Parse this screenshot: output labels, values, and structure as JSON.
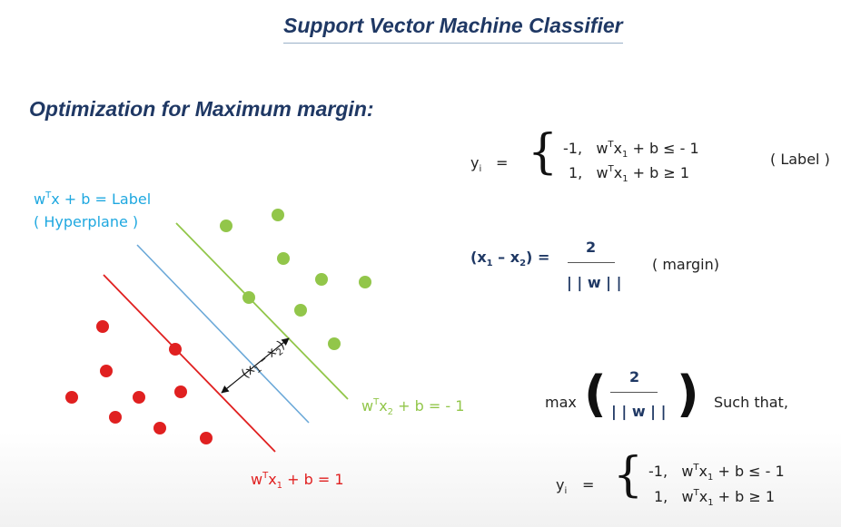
{
  "title": "Support Vector Machine Classifier",
  "subtitle": "Optimization for Maximum margin:",
  "hyperplane": {
    "eq_pre": "w",
    "eq_sup": "T",
    "eq_post": "x  +  b  =  Label",
    "note": "( Hyperplane )"
  },
  "green_line": {
    "w": "w",
    "sup": "T",
    "x": "x",
    "sub": "2",
    "rest": "  +  b  = - 1"
  },
  "red_line": {
    "w": "w",
    "sup": "T",
    "x": "x",
    "sub": "1",
    "rest": "  +  b  =  1"
  },
  "margin_arrow": {
    "open": "(x",
    "s1": "1",
    "mid": " – x",
    "s2": "2",
    "close": ")"
  },
  "label_eq": {
    "lhs": "y",
    "lhs_sub": "i",
    "equals": "=",
    "brace": "{",
    "row1_val": "-1,",
    "row1_expr": "w",
    "row1_sup": "T",
    "row1_x": "x",
    "row1_sub": "1",
    "row1_rest": "  +  b  ≤  - 1",
    "row2_val": "1,",
    "row2_expr": "w",
    "row2_sup": "T",
    "row2_x": "x",
    "row2_sub": "1",
    "row2_rest": "  +  b  ≥  1",
    "note": "( Label )"
  },
  "margin_eq": {
    "lhs_open": "(x",
    "lhs_s1": "1",
    "lhs_mid": " – x",
    "lhs_s2": "2",
    "lhs_close": ")",
    "equals": "=",
    "numerator": "2",
    "denominator": "| | w | |",
    "note": "( margin)"
  },
  "max_eq": {
    "max": "max",
    "open": "(",
    "numerator": "2",
    "denominator": "| | w | |",
    "close": ")",
    "such_that": "Such that,"
  },
  "constraint_eq": {
    "lhs": "y",
    "lhs_sub": "i",
    "equals": "=",
    "brace": "{",
    "row1_val": "-1,",
    "row1_expr": "w",
    "row1_sup": "T",
    "row1_x": "x",
    "row1_sub": "1",
    "row1_rest": "  +  b  ≤  - 1",
    "row2_val": "1,",
    "row2_expr": "w",
    "row2_sup": "T",
    "row2_x": "x",
    "row2_sub": "1",
    "row2_rest": "  +  b  ≥  1"
  },
  "colors": {
    "positive": "#92c64a",
    "negative": "#e02020",
    "hyperplane": "#6aa8d8",
    "heading": "#1f3864"
  }
}
